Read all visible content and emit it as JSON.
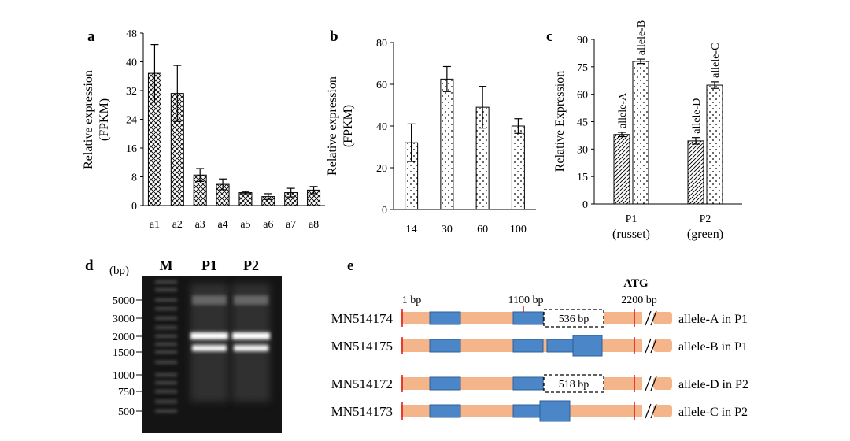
{
  "colors": {
    "axis": "#000000",
    "gel_background": "#141414",
    "gene_bar": "#f5b58a",
    "exon_fill": "#4a86c8",
    "exon_stroke": "#2e5f96",
    "marker_red": "#e01010"
  },
  "panels": {
    "a": {
      "letter": "a"
    },
    "b": {
      "letter": "b"
    },
    "c": {
      "letter": "c"
    },
    "d": {
      "letter": "d"
    },
    "e": {
      "letter": "e"
    }
  },
  "chart_data": [
    {
      "panel": "a",
      "type": "bar",
      "pattern": "crosshatch",
      "categories": [
        "a1",
        "a2",
        "a3",
        "a4",
        "a5",
        "a6",
        "a7",
        "a8"
      ],
      "values": [
        36.8,
        31.2,
        8.5,
        5.9,
        3.6,
        2.5,
        3.6,
        4.3
      ],
      "errors": [
        8.0,
        7.8,
        1.8,
        1.5,
        0.3,
        0.8,
        1.2,
        1.0
      ],
      "ylabel": [
        "Relative expression",
        "(FPKM)"
      ],
      "ylim": [
        0,
        48
      ],
      "yticks": [
        "0",
        "8",
        "16",
        "24",
        "32",
        "40",
        "48"
      ],
      "grid": false
    },
    {
      "panel": "b",
      "type": "bar",
      "pattern": "dots",
      "categories": [
        "14",
        "30",
        "60",
        "100"
      ],
      "values": [
        32,
        62.5,
        49,
        40
      ],
      "errors": [
        9,
        6,
        10,
        3.5
      ],
      "ylabel": [
        "Relative expression",
        "(FPKM)"
      ],
      "ylim": [
        0,
        80
      ],
      "yticks": [
        "0",
        "20",
        "40",
        "60",
        "80"
      ],
      "grid": false
    },
    {
      "panel": "c",
      "type": "bar",
      "categories": [
        {
          "name": "P1",
          "sub": "(russet)"
        },
        {
          "name": "P2",
          "sub": "(green)"
        }
      ],
      "series": [
        {
          "pattern": "diagonal",
          "values": [
            38,
            34.5
          ],
          "errors": [
            1.2,
            1.8
          ],
          "labels": [
            "allele-A",
            "allele-D"
          ]
        },
        {
          "pattern": "dots",
          "values": [
            78,
            65
          ],
          "errors": [
            1.2,
            1.8
          ],
          "labels": [
            "allele-B",
            "allele-C"
          ]
        }
      ],
      "ylabel": "Relative Expression",
      "ylim": [
        0,
        90
      ],
      "yticks": [
        "0",
        "15",
        "30",
        "45",
        "60",
        "75",
        "90"
      ],
      "grid": false
    }
  ],
  "gel": {
    "unit_label": "(bp)",
    "lanes": [
      "M",
      "P1",
      "P2"
    ],
    "markers": [
      "5000",
      "3000",
      "2000",
      "1500",
      "1000",
      "750",
      "500"
    ]
  },
  "diagram": {
    "position_labels": {
      "start": "1 bp",
      "mid": "1100 bp",
      "end": "2200 bp",
      "atg": "ATG"
    },
    "tracks": [
      {
        "accession": "MN514174",
        "label": "allele-A in P1",
        "deletion": "536 bp"
      },
      {
        "accession": "MN514175",
        "label": "allele-B in P1",
        "deletion": ""
      },
      {
        "accession": "MN514172",
        "label": "allele-D in P2",
        "deletion": "518 bp"
      },
      {
        "accession": "MN514173",
        "label": "allele-C in P2",
        "deletion": ""
      }
    ]
  }
}
